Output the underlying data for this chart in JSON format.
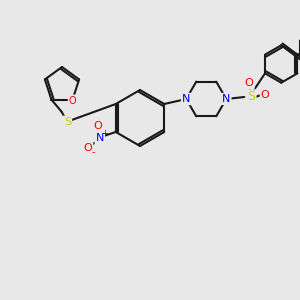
{
  "background_color": "#e8e8e8",
  "bond_color": "#1a1a1a",
  "atom_colors": {
    "O": "#ff0000",
    "N": "#0000ff",
    "S": "#cccc00",
    "C": "#1a1a1a"
  },
  "lw": 1.5,
  "lw_double": 1.4
}
